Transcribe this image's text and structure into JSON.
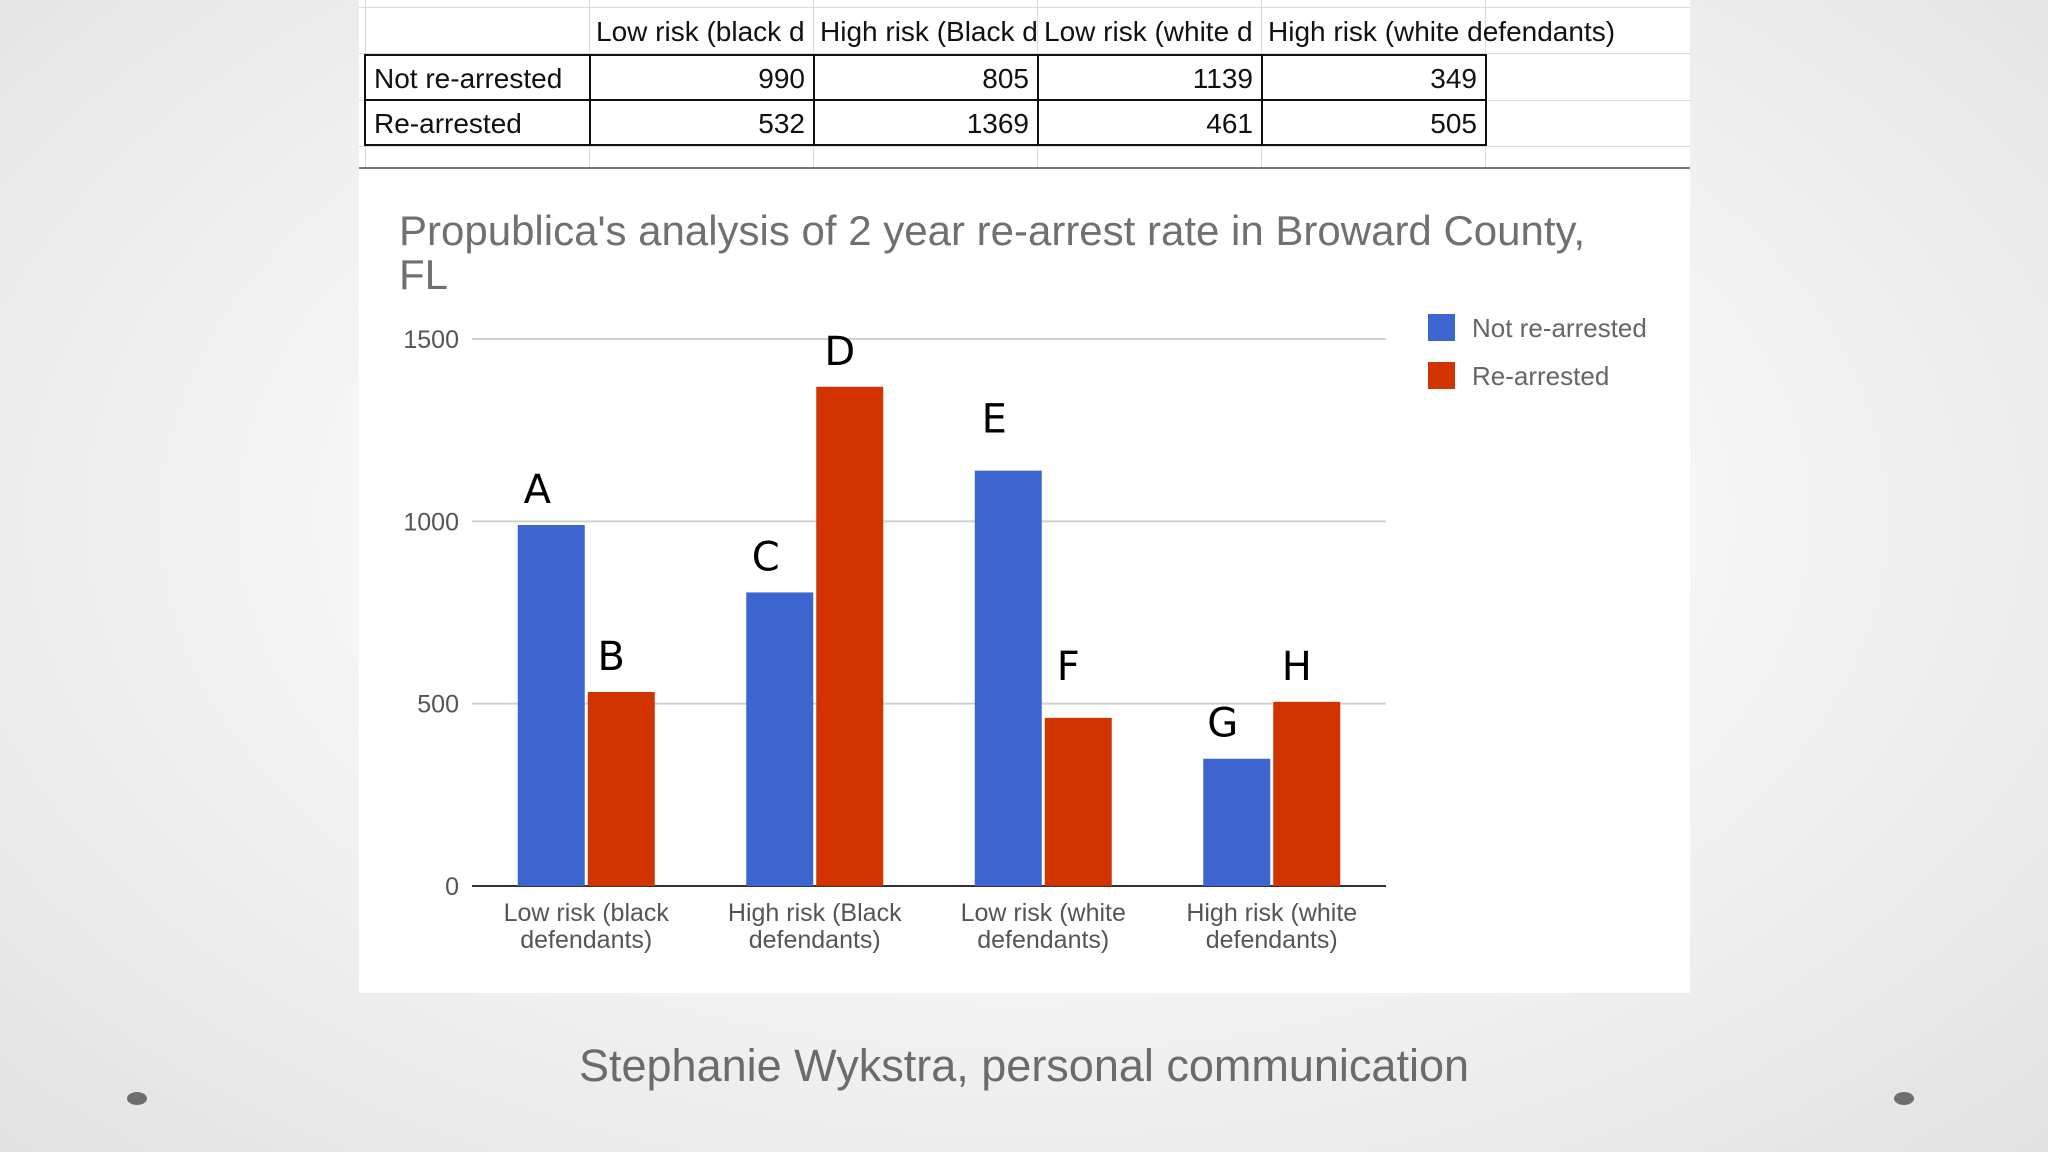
{
  "table": {
    "headers": [
      "",
      "Low risk (black defendants)",
      "High risk (Black defendants)",
      "Low risk (white defendants)",
      "High risk (white defendants)"
    ],
    "header_display": [
      "",
      "Low risk (black d",
      "High risk (Black d",
      "Low risk (white d",
      "High risk (white defendants)"
    ],
    "rows": [
      {
        "label": "Not re-arrested",
        "values": [
          "990",
          "805",
          "1139",
          "349"
        ]
      },
      {
        "label": "Re-arrested",
        "values": [
          "532",
          "1369",
          "461",
          "505"
        ]
      }
    ]
  },
  "chart_data": {
    "type": "bar",
    "title": "Propublica's analysis of 2 year re-arrest rate in Broward County, FL",
    "title_lines": [
      "Propublica's analysis of 2 year re-arrest rate in Broward County,",
      "FL"
    ],
    "categories": [
      [
        "Low risk (black",
        "defendants)"
      ],
      [
        "High risk (Black",
        "defendants)"
      ],
      [
        "Low risk (white",
        "defendants)"
      ],
      [
        "High risk (white",
        "defendants)"
      ]
    ],
    "series": [
      {
        "name": "Not re-arrested",
        "color": "#3c65d0",
        "values": [
          990,
          805,
          1139,
          349
        ],
        "annotations": [
          "A",
          "C",
          "E",
          "G"
        ]
      },
      {
        "name": "Re-arrested",
        "color": "#d13400",
        "values": [
          532,
          1369,
          461,
          505
        ],
        "annotations": [
          "B",
          "D",
          "F",
          "H"
        ]
      }
    ],
    "yticks": [
      "0",
      "500",
      "1000",
      "1500"
    ],
    "ylim": [
      0,
      1500
    ],
    "grid": true,
    "legend": "right-top"
  },
  "caption": "Stephanie Wykstra, personal communication"
}
